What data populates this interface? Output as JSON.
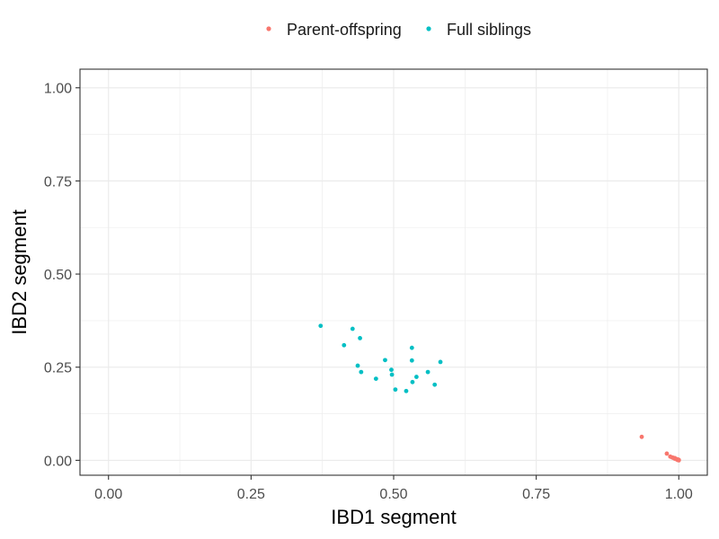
{
  "chart_data": {
    "type": "scatter",
    "xlabel": "IBD1 segment",
    "ylabel": "IBD2 segment",
    "xlim": [
      -0.05,
      1.05
    ],
    "ylim": [
      -0.04,
      1.05
    ],
    "x_ticks": [
      "0.00",
      "0.25",
      "0.50",
      "0.75",
      "1.00"
    ],
    "y_ticks": [
      "0.00",
      "0.25",
      "0.50",
      "0.75",
      "1.00"
    ],
    "grid": true,
    "legend_position": "top",
    "series": [
      {
        "name": "Parent-offspring",
        "color": "#F8766D",
        "points": [
          [
            0.935,
            0.063
          ],
          [
            0.979,
            0.018
          ],
          [
            0.985,
            0.01
          ],
          [
            0.988,
            0.008
          ],
          [
            0.99,
            0.007
          ],
          [
            0.992,
            0.005
          ],
          [
            0.994,
            0.004
          ],
          [
            0.996,
            0.003
          ],
          [
            0.997,
            0.002
          ],
          [
            0.998,
            0.001
          ],
          [
            0.999,
            0.001
          ],
          [
            1.0,
            0.0
          ],
          [
            0.995,
            0.004
          ],
          [
            0.993,
            0.006
          ],
          [
            0.999,
            0.002
          ],
          [
            1.0,
            0.001
          ]
        ]
      },
      {
        "name": "Full siblings",
        "color": "#00BFC4",
        "points": [
          [
            0.372,
            0.361
          ],
          [
            0.428,
            0.353
          ],
          [
            0.413,
            0.309
          ],
          [
            0.441,
            0.328
          ],
          [
            0.437,
            0.254
          ],
          [
            0.443,
            0.237
          ],
          [
            0.469,
            0.219
          ],
          [
            0.485,
            0.269
          ],
          [
            0.496,
            0.243
          ],
          [
            0.497,
            0.23
          ],
          [
            0.503,
            0.19
          ],
          [
            0.522,
            0.186
          ],
          [
            0.532,
            0.302
          ],
          [
            0.532,
            0.268
          ],
          [
            0.533,
            0.21
          ],
          [
            0.54,
            0.224
          ],
          [
            0.56,
            0.237
          ],
          [
            0.572,
            0.203
          ],
          [
            0.582,
            0.264
          ]
        ]
      }
    ]
  }
}
